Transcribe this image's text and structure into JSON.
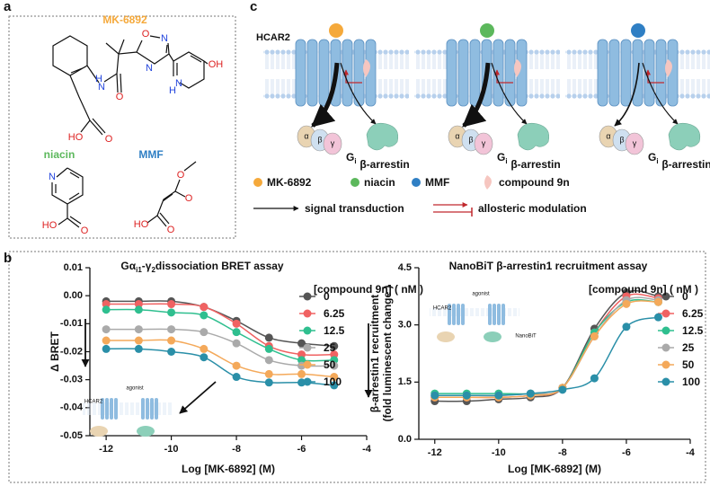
{
  "panel_labels": {
    "a": "a",
    "b": "b",
    "c": "c"
  },
  "panel_a": {
    "molecules": [
      {
        "name": "MK-6892",
        "atoms": [
          "O",
          "N",
          "N",
          "N",
          "H",
          "OH",
          "H",
          "N",
          "O",
          "HO",
          "O"
        ]
      },
      {
        "name": "niacin",
        "atoms": [
          "N",
          "HO",
          "O"
        ]
      },
      {
        "name": "MMF",
        "atoms": [
          "O",
          "O",
          "HO",
          "O"
        ]
      }
    ]
  },
  "panel_c": {
    "receptor": "HCAR2",
    "pathways": [
      {
        "subunits": [
          "α",
          "β",
          "γ"
        ],
        "g_protein": "G",
        "g_protein_sub": "i",
        "arrestin": "β-arrestin"
      },
      {
        "subunits": [
          "α",
          "β",
          "γ"
        ],
        "g_protein": "G",
        "g_protein_sub": "i",
        "arrestin": "β-arrestin"
      },
      {
        "subunits": [
          "α",
          "β",
          "γ"
        ],
        "g_protein": "G",
        "g_protein_sub": "i",
        "arrestin": "β-arrestin"
      }
    ],
    "legend": [
      {
        "name": "MK-6892",
        "color": "#f5a93b"
      },
      {
        "name": "niacin",
        "color": "#5cb85c"
      },
      {
        "name": "MMF",
        "color": "#2f7fc4"
      },
      {
        "name": "compound 9n",
        "color": "#f6c6c0"
      }
    ],
    "arrow_legend": [
      "signal transduction",
      "allosteric modulation"
    ]
  },
  "chart_data": [
    {
      "type": "line",
      "title": [
        {
          "text": "Gα"
        },
        {
          "text": "i1",
          "sub": true
        },
        {
          "text": "-γ"
        },
        {
          "text": "2",
          "sub": true
        },
        {
          "text": "dissociation BRET assay"
        }
      ],
      "xlabel": "Log [MK-6892] (M)",
      "ylabel": [
        "Δ BRET"
      ],
      "legend_title": "[compound 9n] ( nM )",
      "annotations": [
        "HCAR2",
        "agonist"
      ],
      "x": [
        -12,
        -11,
        -10,
        -9,
        -8,
        -7,
        -6,
        -5
      ],
      "xlim": [
        -12.5,
        -4
      ],
      "xticks": [
        -12,
        -10,
        -8,
        -6,
        -4
      ],
      "ylim": [
        -0.05,
        0.01
      ],
      "yticks": [
        0.01,
        {
          "value": 0,
          "label": "0.00"
        },
        -0.01,
        -0.02,
        -0.03,
        -0.04,
        -0.05
      ],
      "series": [
        {
          "name": "0",
          "color": "#555555",
          "values": [
            -0.002,
            -0.002,
            -0.002,
            -0.004,
            -0.009,
            -0.015,
            -0.017,
            -0.018
          ]
        },
        {
          "name": "6.25",
          "color": "#f06262",
          "values": [
            -0.003,
            -0.003,
            -0.003,
            -0.004,
            -0.01,
            -0.018,
            -0.021,
            -0.021
          ]
        },
        {
          "name": "12.5",
          "color": "#2fbf8f",
          "values": [
            -0.005,
            -0.005,
            -0.006,
            -0.007,
            -0.013,
            -0.019,
            -0.023,
            -0.023
          ]
        },
        {
          "name": "25",
          "color": "#aaaaaa",
          "values": [
            -0.012,
            -0.012,
            -0.012,
            -0.013,
            -0.017,
            -0.023,
            -0.025,
            -0.025
          ]
        },
        {
          "name": "50",
          "color": "#f4a95a",
          "values": [
            -0.016,
            -0.016,
            -0.016,
            -0.019,
            -0.025,
            -0.028,
            -0.028,
            -0.029
          ]
        },
        {
          "name": "100",
          "color": "#2a8fa8",
          "values": [
            -0.019,
            -0.019,
            -0.02,
            -0.022,
            -0.029,
            -0.031,
            -0.031,
            -0.032
          ]
        }
      ]
    },
    {
      "type": "line",
      "title": [
        {
          "text": "NanoBiT  β-arrestin1 recruitment assay"
        }
      ],
      "xlabel": "Log [MK-6892] (M)",
      "ylabel": [
        "β-arrestin1 recruitment",
        "(fold luminescent change )"
      ],
      "legend_title": "[compound 9n] ( nM )",
      "annotations": [
        "HCAR2",
        "agonist",
        "NanoBiT"
      ],
      "x": [
        -12,
        -11,
        -10,
        -9,
        -8,
        -7,
        -6,
        -5
      ],
      "xlim": [
        -12.5,
        -4
      ],
      "xticks": [
        -12,
        -10,
        -8,
        -6,
        -4
      ],
      "ylim": [
        0,
        4.5
      ],
      "yticks": [
        {
          "value": 0,
          "label": "0.0"
        },
        1.5,
        {
          "value": 3,
          "label": "3.0"
        },
        4.5
      ],
      "series": [
        {
          "name": "0",
          "color": "#555555",
          "values": [
            1.0,
            1.0,
            1.05,
            1.1,
            1.35,
            2.9,
            3.85,
            3.75
          ]
        },
        {
          "name": "6.25",
          "color": "#f06262",
          "values": [
            1.1,
            1.1,
            1.1,
            1.15,
            1.35,
            2.8,
            3.75,
            3.7
          ]
        },
        {
          "name": "12.5",
          "color": "#2fbf8f",
          "values": [
            1.2,
            1.2,
            1.2,
            1.2,
            1.35,
            2.8,
            3.6,
            3.6
          ]
        },
        {
          "name": "25",
          "color": "#aaaaaa",
          "values": [
            1.15,
            1.15,
            1.15,
            1.2,
            1.35,
            2.7,
            3.65,
            3.65
          ]
        },
        {
          "name": "50",
          "color": "#f4a95a",
          "values": [
            1.1,
            1.1,
            1.1,
            1.15,
            1.35,
            2.7,
            3.55,
            3.6
          ]
        },
        {
          "name": "100",
          "color": "#2a8fa8",
          "values": [
            1.15,
            1.15,
            1.15,
            1.2,
            1.3,
            1.6,
            2.95,
            3.2
          ]
        }
      ]
    }
  ]
}
